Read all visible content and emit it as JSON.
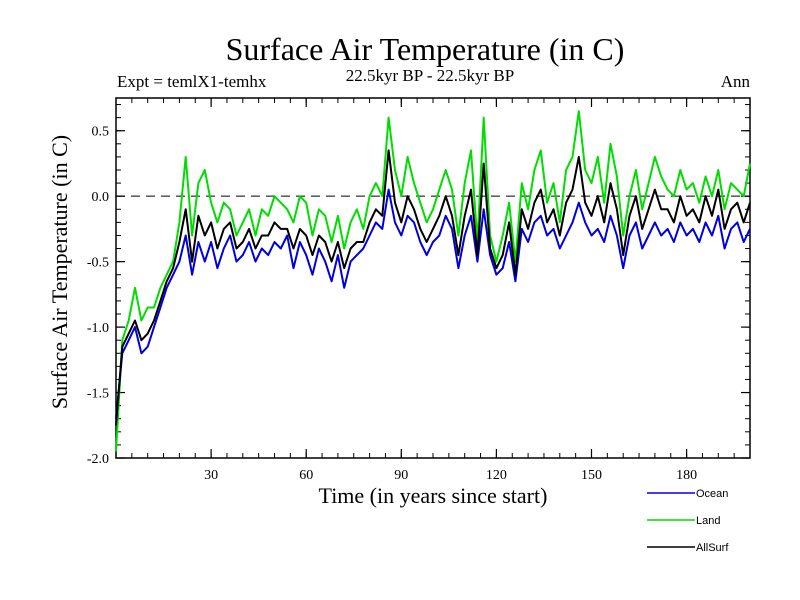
{
  "chart_data": {
    "type": "line",
    "title": "Surface Air Temperature (in C)",
    "subtitle": "22.5kyr BP - 22.5kyr BP",
    "expt_label": "Expt = temlX1-temhx",
    "season_label": "Ann",
    "xlabel": "Time (in years since start)",
    "ylabel": "Surface Air Temperature (in C)",
    "xlim": [
      0,
      200
    ],
    "ylim": [
      -2.0,
      0.75
    ],
    "xticks": [
      30,
      60,
      90,
      120,
      150,
      180
    ],
    "yticks": [
      -2.0,
      -1.5,
      -1.0,
      -0.5,
      0.0,
      0.5
    ],
    "ytick_labels": [
      "-2.0",
      "-1.5",
      "-1.0",
      "-0.5",
      "0.0",
      "0.5"
    ],
    "reference_line": {
      "y": 0.0,
      "style": "dashed"
    },
    "x": [
      0,
      2,
      4,
      6,
      8,
      10,
      12,
      14,
      16,
      18,
      20,
      22,
      24,
      26,
      28,
      30,
      32,
      34,
      36,
      38,
      40,
      42,
      44,
      46,
      48,
      50,
      52,
      54,
      56,
      58,
      60,
      62,
      64,
      66,
      68,
      70,
      72,
      74,
      76,
      78,
      80,
      82,
      84,
      86,
      88,
      90,
      92,
      94,
      96,
      98,
      100,
      102,
      104,
      106,
      108,
      110,
      112,
      114,
      116,
      118,
      120,
      122,
      124,
      126,
      128,
      130,
      132,
      134,
      136,
      138,
      140,
      142,
      144,
      146,
      148,
      150,
      152,
      154,
      156,
      158,
      160,
      162,
      164,
      166,
      168,
      170,
      172,
      174,
      176,
      178,
      180,
      182,
      184,
      186,
      188,
      190,
      192,
      194,
      196,
      198,
      200
    ],
    "series": [
      {
        "name": "Ocean",
        "color": "#0000dd",
        "values": [
          -1.7,
          -1.2,
          -1.1,
          -1.0,
          -1.2,
          -1.15,
          -1.0,
          -0.85,
          -0.7,
          -0.6,
          -0.5,
          -0.3,
          -0.6,
          -0.35,
          -0.5,
          -0.35,
          -0.55,
          -0.4,
          -0.3,
          -0.5,
          -0.45,
          -0.35,
          -0.5,
          -0.4,
          -0.45,
          -0.35,
          -0.4,
          -0.3,
          -0.55,
          -0.35,
          -0.45,
          -0.6,
          -0.4,
          -0.5,
          -0.65,
          -0.45,
          -0.7,
          -0.5,
          -0.45,
          -0.4,
          -0.3,
          -0.2,
          -0.25,
          0.05,
          -0.2,
          -0.3,
          -0.15,
          -0.2,
          -0.35,
          -0.45,
          -0.35,
          -0.3,
          -0.15,
          -0.25,
          -0.55,
          -0.3,
          -0.15,
          -0.5,
          -0.1,
          -0.45,
          -0.6,
          -0.55,
          -0.35,
          -0.65,
          -0.25,
          -0.35,
          -0.2,
          -0.15,
          -0.3,
          -0.25,
          -0.4,
          -0.3,
          -0.2,
          -0.05,
          -0.2,
          -0.3,
          -0.25,
          -0.35,
          -0.15,
          -0.3,
          -0.55,
          -0.3,
          -0.2,
          -0.4,
          -0.3,
          -0.2,
          -0.3,
          -0.25,
          -0.35,
          -0.2,
          -0.3,
          -0.25,
          -0.35,
          -0.2,
          -0.3,
          -0.15,
          -0.4,
          -0.25,
          -0.2,
          -0.35,
          -0.25
        ]
      },
      {
        "name": "Land",
        "color": "#00dd00",
        "values": [
          -1.95,
          -1.1,
          -0.95,
          -0.7,
          -0.95,
          -0.85,
          -0.85,
          -0.7,
          -0.6,
          -0.5,
          -0.2,
          0.3,
          -0.3,
          0.1,
          0.2,
          -0.05,
          -0.2,
          -0.05,
          -0.1,
          -0.3,
          -0.2,
          -0.1,
          -0.3,
          -0.1,
          -0.15,
          0.0,
          -0.05,
          -0.1,
          -0.2,
          0.0,
          -0.05,
          -0.3,
          -0.1,
          -0.15,
          -0.35,
          -0.15,
          -0.4,
          -0.2,
          -0.1,
          -0.25,
          0.0,
          0.1,
          0.0,
          0.6,
          0.2,
          0.0,
          0.3,
          0.1,
          -0.05,
          -0.2,
          -0.1,
          0.05,
          0.2,
          0.05,
          -0.3,
          0.1,
          0.35,
          -0.35,
          0.6,
          -0.3,
          -0.5,
          -0.3,
          -0.05,
          -0.5,
          0.1,
          -0.1,
          0.2,
          0.35,
          -0.05,
          0.1,
          -0.2,
          0.2,
          0.3,
          0.65,
          0.2,
          0.1,
          0.3,
          -0.05,
          0.4,
          0.15,
          -0.3,
          0.0,
          0.2,
          -0.1,
          0.1,
          0.3,
          0.15,
          0.05,
          0.0,
          0.2,
          0.05,
          0.1,
          -0.05,
          0.15,
          0.0,
          0.2,
          -0.1,
          0.1,
          0.05,
          0.0,
          0.25
        ]
      },
      {
        "name": "AllSurf",
        "color": "#000000",
        "values": [
          -1.75,
          -1.15,
          -1.05,
          -0.95,
          -1.1,
          -1.05,
          -0.95,
          -0.8,
          -0.65,
          -0.55,
          -0.35,
          -0.1,
          -0.5,
          -0.15,
          -0.3,
          -0.2,
          -0.4,
          -0.25,
          -0.2,
          -0.4,
          -0.35,
          -0.25,
          -0.4,
          -0.3,
          -0.3,
          -0.2,
          -0.25,
          -0.25,
          -0.4,
          -0.25,
          -0.3,
          -0.45,
          -0.3,
          -0.35,
          -0.5,
          -0.35,
          -0.55,
          -0.4,
          -0.35,
          -0.35,
          -0.2,
          -0.1,
          -0.15,
          0.35,
          -0.05,
          -0.2,
          0.0,
          -0.1,
          -0.25,
          -0.35,
          -0.25,
          -0.15,
          0.0,
          -0.15,
          -0.45,
          -0.15,
          0.05,
          -0.45,
          0.25,
          -0.4,
          -0.55,
          -0.45,
          -0.2,
          -0.6,
          -0.1,
          -0.25,
          -0.05,
          0.05,
          -0.2,
          -0.1,
          -0.3,
          -0.05,
          0.05,
          0.3,
          -0.05,
          -0.15,
          0.0,
          -0.2,
          0.1,
          -0.1,
          -0.45,
          -0.15,
          0.0,
          -0.25,
          -0.1,
          0.05,
          -0.1,
          -0.1,
          -0.2,
          0.0,
          -0.15,
          -0.1,
          -0.2,
          0.0,
          -0.15,
          0.05,
          -0.25,
          -0.1,
          -0.05,
          -0.2,
          -0.05
        ]
      }
    ]
  }
}
